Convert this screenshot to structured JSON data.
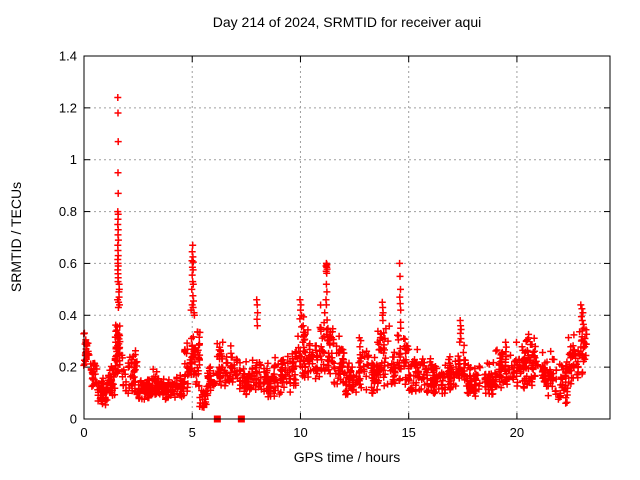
{
  "chart_data": {
    "type": "scatter",
    "title": "Day 214 of 2024, SRMTID for receiver aqui",
    "xlabel": "GPS time / hours",
    "ylabel": "SRMTID / TECUs",
    "xlim": [
      0,
      24.3
    ],
    "ylim": [
      0,
      1.4
    ],
    "xticks": [
      0,
      5,
      10,
      15,
      20
    ],
    "xtick_labels": [
      "0",
      "5",
      "10",
      "15",
      "20"
    ],
    "yticks": [
      0,
      0.2,
      0.4,
      0.6,
      0.8,
      1,
      1.2,
      1.4
    ],
    "ytick_labels": [
      "0",
      "0.2",
      "0.4",
      "0.6",
      "0.8",
      "1",
      "1.2",
      "1.4"
    ],
    "grid": true,
    "legend": "none",
    "background": "#ffffff",
    "grid_color": "#9f9f9f",
    "axis_color": "#000000",
    "marker": {
      "symbol": "plus",
      "color": "#ff0000",
      "size": 7
    },
    "gap_marker": {
      "symbol": "filled-square",
      "color": "#ff0000",
      "size": 7
    },
    "encoding": "Dense noisy scatter (~1800 samples over 0-23.2 h) summarized as band_segments [x_start,x_end,y_low,y_high,n_points] plus explicit peak_points [x,y]; gap_points are filled squares on the x-axis.",
    "seed": 1234,
    "band_segments": [
      [
        0.0,
        0.25,
        0.2,
        0.34,
        28
      ],
      [
        0.25,
        0.6,
        0.12,
        0.27,
        26
      ],
      [
        0.6,
        1.1,
        0.05,
        0.17,
        40
      ],
      [
        1.1,
        1.45,
        0.08,
        0.22,
        30
      ],
      [
        1.45,
        1.8,
        0.16,
        0.44,
        45
      ],
      [
        1.8,
        2.45,
        0.09,
        0.28,
        45
      ],
      [
        2.45,
        3.1,
        0.07,
        0.16,
        52
      ],
      [
        3.1,
        3.6,
        0.08,
        0.2,
        40
      ],
      [
        3.6,
        4.1,
        0.07,
        0.16,
        40
      ],
      [
        4.1,
        4.6,
        0.08,
        0.19,
        38
      ],
      [
        4.6,
        4.95,
        0.1,
        0.32,
        30
      ],
      [
        4.95,
        5.35,
        0.12,
        0.4,
        45
      ],
      [
        5.35,
        5.65,
        0.03,
        0.13,
        22
      ],
      [
        5.65,
        6.05,
        0.08,
        0.21,
        28
      ],
      [
        6.05,
        6.55,
        0.12,
        0.32,
        36
      ],
      [
        6.55,
        7.1,
        0.13,
        0.3,
        38
      ],
      [
        7.1,
        7.6,
        0.08,
        0.23,
        34
      ],
      [
        7.6,
        8.15,
        0.1,
        0.26,
        38
      ],
      [
        8.15,
        8.7,
        0.08,
        0.24,
        40
      ],
      [
        8.7,
        9.3,
        0.08,
        0.27,
        42
      ],
      [
        9.3,
        9.8,
        0.1,
        0.3,
        35
      ],
      [
        9.8,
        10.35,
        0.14,
        0.42,
        40
      ],
      [
        10.35,
        10.85,
        0.12,
        0.35,
        38
      ],
      [
        10.85,
        11.55,
        0.15,
        0.46,
        55
      ],
      [
        11.55,
        12.05,
        0.12,
        0.34,
        38
      ],
      [
        12.05,
        12.65,
        0.08,
        0.25,
        42
      ],
      [
        12.65,
        13.15,
        0.1,
        0.32,
        36
      ],
      [
        13.15,
        13.55,
        0.08,
        0.25,
        30
      ],
      [
        13.55,
        14.15,
        0.12,
        0.4,
        45
      ],
      [
        14.15,
        14.45,
        0.1,
        0.28,
        22
      ],
      [
        14.45,
        14.95,
        0.12,
        0.42,
        38
      ],
      [
        14.95,
        15.45,
        0.08,
        0.28,
        35
      ],
      [
        15.45,
        16.15,
        0.1,
        0.25,
        48
      ],
      [
        16.15,
        16.75,
        0.08,
        0.22,
        42
      ],
      [
        16.75,
        17.25,
        0.1,
        0.26,
        35
      ],
      [
        17.25,
        17.65,
        0.13,
        0.32,
        28
      ],
      [
        17.65,
        18.35,
        0.08,
        0.22,
        48
      ],
      [
        18.35,
        19.05,
        0.08,
        0.25,
        48
      ],
      [
        19.05,
        19.75,
        0.1,
        0.31,
        46
      ],
      [
        19.75,
        20.35,
        0.1,
        0.32,
        42
      ],
      [
        20.35,
        21.15,
        0.12,
        0.36,
        55
      ],
      [
        21.15,
        21.75,
        0.08,
        0.28,
        42
      ],
      [
        21.75,
        22.35,
        0.06,
        0.25,
        40
      ],
      [
        22.35,
        22.85,
        0.12,
        0.34,
        35
      ],
      [
        22.85,
        23.25,
        0.15,
        0.4,
        28
      ]
    ],
    "peak_points": [
      [
        1.56,
        1.24
      ],
      [
        1.57,
        1.18
      ],
      [
        1.58,
        1.07
      ],
      [
        1.57,
        0.95
      ],
      [
        1.58,
        0.87
      ],
      [
        1.56,
        0.8
      ],
      [
        1.58,
        0.79
      ],
      [
        1.57,
        0.77
      ],
      [
        1.56,
        0.75
      ],
      [
        1.58,
        0.73
      ],
      [
        1.57,
        0.71
      ],
      [
        1.59,
        0.69
      ],
      [
        1.56,
        0.67
      ],
      [
        1.57,
        0.65
      ],
      [
        1.58,
        0.63
      ],
      [
        1.56,
        0.615
      ],
      [
        1.57,
        0.6
      ],
      [
        1.58,
        0.59
      ],
      [
        1.56,
        0.575
      ],
      [
        1.57,
        0.56
      ],
      [
        1.58,
        0.545
      ],
      [
        1.57,
        0.53
      ],
      [
        1.62,
        0.52
      ],
      [
        1.63,
        0.5
      ],
      [
        1.61,
        0.49
      ],
      [
        1.62,
        0.47
      ],
      [
        1.55,
        0.46
      ],
      [
        1.6,
        0.45
      ],
      [
        1.64,
        0.44
      ],
      [
        1.59,
        0.43
      ],
      [
        5.02,
        0.67
      ],
      [
        5.0,
        0.645
      ],
      [
        5.03,
        0.625
      ],
      [
        4.99,
        0.61
      ],
      [
        5.05,
        0.605
      ],
      [
        5.01,
        0.585
      ],
      [
        5.04,
        0.575
      ],
      [
        5.0,
        0.555
      ],
      [
        5.02,
        0.53
      ],
      [
        5.05,
        0.52
      ],
      [
        4.98,
        0.5
      ],
      [
        5.03,
        0.475
      ],
      [
        5.06,
        0.455
      ],
      [
        5.0,
        0.44
      ],
      [
        5.04,
        0.43
      ],
      [
        5.08,
        0.41
      ],
      [
        5.1,
        0.4
      ],
      [
        4.95,
        0.42
      ],
      [
        7.98,
        0.46
      ],
      [
        8.0,
        0.44
      ],
      [
        8.02,
        0.41
      ],
      [
        7.99,
        0.385
      ],
      [
        8.01,
        0.36
      ],
      [
        9.98,
        0.46
      ],
      [
        10.02,
        0.44
      ],
      [
        10.0,
        0.42
      ],
      [
        10.05,
        0.4
      ],
      [
        11.2,
        0.6
      ],
      [
        11.22,
        0.595
      ],
      [
        11.18,
        0.59
      ],
      [
        11.21,
        0.585
      ],
      [
        11.23,
        0.578
      ],
      [
        11.19,
        0.57
      ],
      [
        11.21,
        0.562
      ],
      [
        11.2,
        0.52
      ],
      [
        11.22,
        0.49
      ],
      [
        11.18,
        0.46
      ],
      [
        11.2,
        0.44
      ],
      [
        13.78,
        0.45
      ],
      [
        13.8,
        0.43
      ],
      [
        13.82,
        0.41
      ],
      [
        13.79,
        0.4
      ],
      [
        13.81,
        0.38
      ],
      [
        14.58,
        0.6
      ],
      [
        14.6,
        0.55
      ],
      [
        14.62,
        0.5
      ],
      [
        14.59,
        0.47
      ],
      [
        14.61,
        0.445
      ],
      [
        14.63,
        0.42
      ],
      [
        17.38,
        0.38
      ],
      [
        17.4,
        0.36
      ],
      [
        17.42,
        0.345
      ],
      [
        17.39,
        0.33
      ],
      [
        17.41,
        0.31
      ],
      [
        22.95,
        0.44
      ],
      [
        23.0,
        0.425
      ],
      [
        23.05,
        0.41
      ],
      [
        22.98,
        0.395
      ],
      [
        23.02,
        0.38
      ],
      [
        23.07,
        0.365
      ],
      [
        23.1,
        0.35
      ]
    ],
    "gap_points": [
      [
        6.16,
        0
      ],
      [
        7.27,
        0
      ]
    ]
  }
}
